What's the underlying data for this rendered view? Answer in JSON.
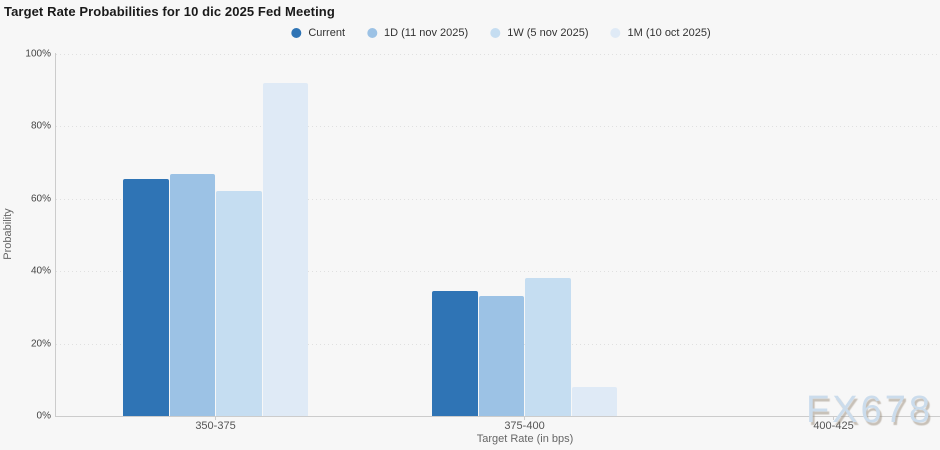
{
  "title": "Target Rate Probabilities for 10 dic 2025 Fed Meeting",
  "watermark": "FX678",
  "colors": {
    "current": "#2f74b5",
    "one_day": "#9cc2e5",
    "one_week": "#c5ddf1",
    "one_month": "#dfeaf6",
    "axis": "#cccccc",
    "gridline": "#e0e0e0",
    "background": "#f7f7f7"
  },
  "chart_data": {
    "type": "bar",
    "title": "Target Rate Probabilities for 10 dic 2025 Fed Meeting",
    "xlabel": "Target Rate (in bps)",
    "ylabel": "Probability",
    "ylim": [
      0,
      100
    ],
    "yticks": [
      0,
      20,
      40,
      60,
      80,
      100
    ],
    "ytick_suffix": "%",
    "grid": "horizontal-dotted",
    "legend_position": "top-center",
    "categories": [
      "350-375",
      "375-400",
      "400-425"
    ],
    "series": [
      {
        "name": "Current",
        "color": "#2f74b5",
        "values": [
          65.3,
          34.5,
          0
        ]
      },
      {
        "name": "1D (11 nov 2025)",
        "color": "#9cc2e5",
        "values": [
          66.8,
          33.0,
          0
        ]
      },
      {
        "name": "1W (5 nov 2025)",
        "color": "#c5ddf1",
        "values": [
          62.0,
          38.0,
          0
        ]
      },
      {
        "name": "1M (10 oct 2025)",
        "color": "#dfeaf6",
        "values": [
          91.8,
          8.0,
          0
        ]
      }
    ]
  }
}
